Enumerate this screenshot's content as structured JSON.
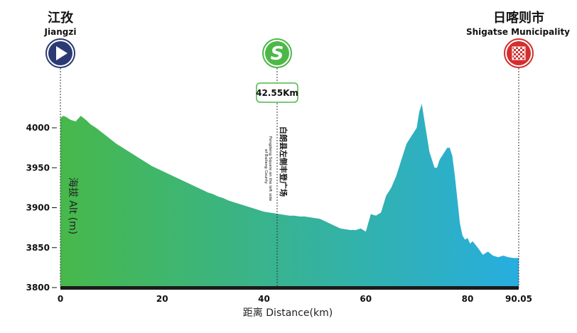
{
  "start": {
    "name_cn": "江孜",
    "name_en": "Jiangzi"
  },
  "sprint": {
    "distance_label": "42.55Km",
    "name_cn": "白朗县左侧丰登广场",
    "name_en_line1": "Fengdeng Square on the left side",
    "name_en_line2": "of Bailang County",
    "icon_letter": "S"
  },
  "finish": {
    "name_cn": "日喀则市",
    "name_en": "Shigatse Municipality"
  },
  "colors": {
    "start_icon": "#2b3a73",
    "sprint_icon": "#4db848",
    "finish_icon": "#d32f2f",
    "gradient_start": "#47b84a",
    "gradient_end": "#27aee0"
  },
  "icons": {
    "start": "play-icon",
    "sprint": "sprint-s-icon",
    "finish": "checkered-flag-icon"
  },
  "chart_data": {
    "type": "area",
    "xlabel": "距离 Distance(km)",
    "ylabel": "海拔 Alt (m)",
    "xlim": [
      0,
      90.05
    ],
    "ylim": [
      3800,
      4000
    ],
    "x_ticks": [
      0,
      20,
      40,
      60,
      80,
      90.05
    ],
    "x_tick_labels": [
      "0",
      "20",
      "40",
      "60",
      "80",
      "90.05"
    ],
    "y_ticks": [
      3800,
      3850,
      3900,
      3950,
      4000
    ],
    "y_tick_labels": [
      "3800",
      "3850",
      "3900",
      "3950",
      "4000"
    ],
    "x": [
      0,
      0.5,
      1,
      1.5,
      2,
      3,
      4,
      5,
      6,
      7,
      8,
      9,
      10,
      11,
      12,
      13,
      14,
      15,
      16,
      17,
      18,
      19,
      20,
      21,
      22,
      23,
      24,
      25,
      26,
      27,
      28,
      29,
      30,
      31,
      32,
      33,
      34,
      35,
      36,
      37,
      38,
      39,
      40,
      41,
      42,
      43,
      44,
      45,
      46,
      47,
      48,
      49,
      50,
      51,
      52,
      53,
      54,
      55,
      56,
      57,
      58,
      59,
      60,
      61,
      62,
      63,
      64,
      65,
      66,
      67,
      68,
      69,
      70,
      70.5,
      71,
      71.5,
      72,
      72.5,
      73,
      73.5,
      74,
      74.5,
      75,
      75.5,
      76,
      76.5,
      77,
      77.5,
      78,
      78.5,
      79,
      79.5,
      80,
      80.5,
      81,
      82,
      83,
      84,
      85,
      86,
      87,
      88,
      89,
      90.05
    ],
    "y": [
      4012,
      4015,
      4014,
      4012,
      4010,
      4008,
      4015,
      4010,
      4004,
      4000,
      3995,
      3990,
      3985,
      3980,
      3976,
      3972,
      3968,
      3964,
      3960,
      3956,
      3952,
      3949,
      3946,
      3943,
      3940,
      3937,
      3934,
      3931,
      3928,
      3925,
      3922,
      3919,
      3917,
      3914,
      3912,
      3909,
      3907,
      3905,
      3903,
      3901,
      3899,
      3897,
      3895,
      3894,
      3893,
      3892,
      3891,
      3890,
      3890,
      3889,
      3889,
      3888,
      3887,
      3886,
      3883,
      3880,
      3877,
      3874,
      3873,
      3872,
      3872,
      3874,
      3870,
      3892,
      3890,
      3894,
      3915,
      3925,
      3940,
      3960,
      3980,
      3990,
      4000,
      4020,
      4030,
      4010,
      3990,
      3970,
      3960,
      3950,
      3950,
      3960,
      3965,
      3970,
      3975,
      3975,
      3965,
      3940,
      3910,
      3880,
      3865,
      3860,
      3862,
      3855,
      3858,
      3850,
      3841,
      3845,
      3840,
      3838,
      3840,
      3838,
      3837,
      3837
    ]
  }
}
